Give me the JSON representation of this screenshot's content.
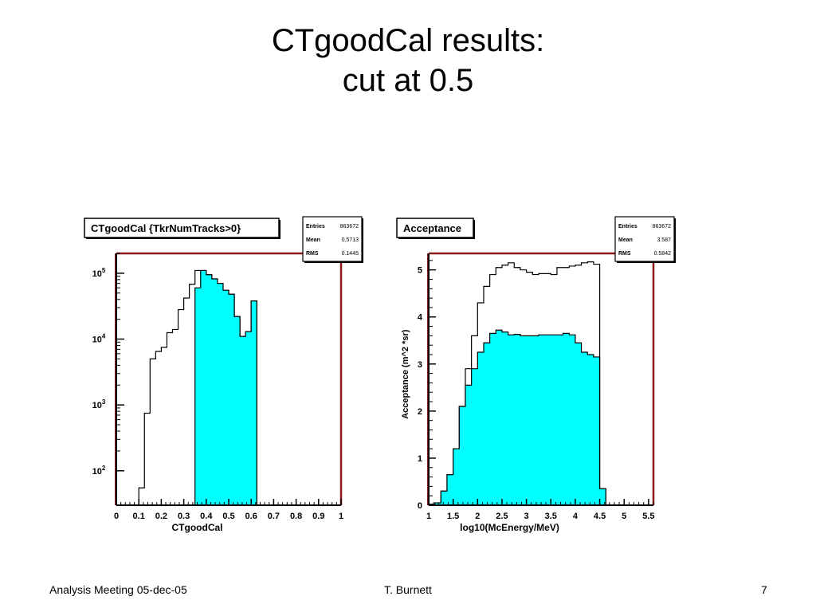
{
  "slide": {
    "title_line1": "CTgoodCal results:",
    "title_line2": "cut at 0.5"
  },
  "footer": {
    "left": "Analysis Meeting 05-dec-05",
    "center": "T. Burnett",
    "right": "7"
  },
  "colors": {
    "fill": "#00ffff",
    "frame": "#8b1a1a",
    "outline": "#000000"
  },
  "chart_data": [
    {
      "type": "histogram",
      "title": "CTgoodCal {TkrNumTracks>0}",
      "xlabel": "CTgoodCal",
      "ylabel": "",
      "yscale": "log",
      "xlim": [
        0,
        1
      ],
      "ylim": [
        30,
        200000
      ],
      "stats": [
        {
          "label": "Entries",
          "value": "863672"
        },
        {
          "label": "Mean",
          "value": "0.5713"
        },
        {
          "label": "RMS",
          "value": "0.1445"
        }
      ],
      "x_ticks": [
        "0",
        "0.1",
        "0.2",
        "0.3",
        "0.4",
        "0.5",
        "0.6",
        "0.7",
        "0.8",
        "0.9",
        "1"
      ],
      "y_ticks": [
        {
          "value": 100,
          "base": "10",
          "exp": "2"
        },
        {
          "value": 1000,
          "base": "10",
          "exp": "3"
        },
        {
          "value": 10000,
          "base": "10",
          "exp": "4"
        },
        {
          "value": 100000,
          "base": "10",
          "exp": "5"
        }
      ],
      "bin_width": 0.025,
      "series": [
        {
          "name": "",
          "style": "outline",
          "values": [
            0,
            0,
            0,
            0,
            55,
            750,
            5000,
            6500,
            7500,
            12500,
            14000,
            28000,
            42000,
            68000,
            110000,
            110000,
            95000,
            82000,
            70000,
            55000,
            48000,
            22000,
            11000,
            13000,
            38000,
            0,
            0,
            0,
            0,
            0,
            0,
            0,
            0,
            0,
            0,
            0,
            0,
            0,
            0,
            0
          ]
        },
        {
          "name": "",
          "style": "filled",
          "values": [
            0,
            0,
            0,
            0,
            0,
            0,
            0,
            0,
            0,
            0,
            0,
            0,
            0,
            0,
            60000,
            110000,
            95000,
            82000,
            70000,
            55000,
            48000,
            22000,
            11000,
            13000,
            38000,
            0,
            0,
            0,
            0,
            0,
            0,
            0,
            0,
            0,
            0,
            0,
            0,
            0,
            0,
            0
          ]
        }
      ]
    },
    {
      "type": "histogram",
      "title": "Acceptance",
      "xlabel": "log10(McEnergy/MeV)",
      "ylabel": "Acceptance (m^2 *sr)",
      "yscale": "linear",
      "xlim": [
        1,
        5.6
      ],
      "ylim": [
        0,
        5.35
      ],
      "stats": [
        {
          "label": "Entries",
          "value": "863672"
        },
        {
          "label": "Mean",
          "value": "3.587"
        },
        {
          "label": "RMS",
          "value": "0.5842"
        }
      ],
      "x_ticks": [
        "1",
        "1.5",
        "2",
        "2.5",
        "3",
        "3.5",
        "4",
        "4.5",
        "5",
        "5.5"
      ],
      "y_ticks": [
        "0",
        "1",
        "2",
        "3",
        "4",
        "5"
      ],
      "bin_width": 0.125,
      "series": [
        {
          "name": "",
          "style": "outline",
          "values": [
            0.02,
            0.05,
            0.3,
            0.65,
            1.2,
            2.1,
            2.9,
            3.6,
            4.3,
            4.65,
            4.9,
            5.05,
            5.1,
            5.15,
            5.05,
            5.0,
            4.95,
            4.9,
            4.92,
            4.92,
            4.9,
            5.05,
            5.05,
            5.08,
            5.1,
            5.15,
            5.17,
            5.12,
            0.35
          ]
        },
        {
          "name": "",
          "style": "filled",
          "values": [
            0.02,
            0.05,
            0.3,
            0.65,
            1.2,
            2.1,
            2.55,
            2.9,
            3.25,
            3.45,
            3.65,
            3.72,
            3.68,
            3.62,
            3.63,
            3.6,
            3.6,
            3.6,
            3.62,
            3.62,
            3.62,
            3.62,
            3.65,
            3.62,
            3.45,
            3.25,
            3.2,
            3.15,
            0.35
          ]
        }
      ]
    }
  ]
}
